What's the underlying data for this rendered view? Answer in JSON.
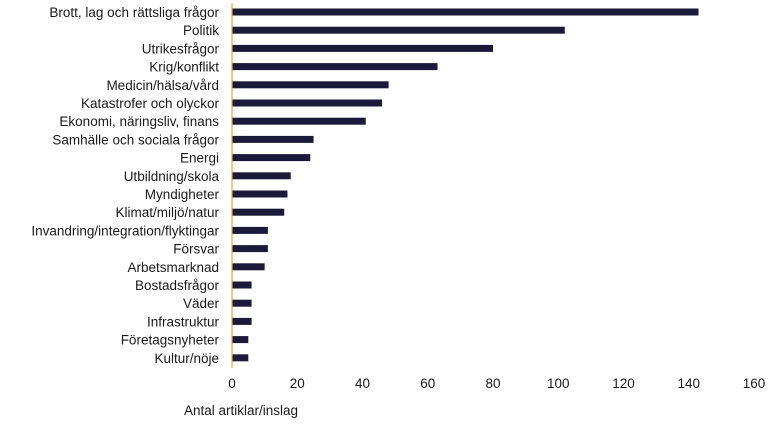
{
  "chart_data": {
    "type": "bar",
    "orientation": "horizontal",
    "categories": [
      "Brott, lag och rättsliga frågor",
      "Politik",
      "Utrikesfrågor",
      "Krig/konflikt",
      "Medicin/hälsa/vård",
      "Katastrofer och olyckor",
      "Ekonomi, näringsliv, finans",
      "Samhälle och sociala frågor",
      "Energi",
      "Utbildning/skola",
      "Myndigheter",
      "Klimat/miljö/natur",
      "Invandring/integration/flyktingar",
      "Försvar",
      "Arbetsmarknad",
      "Bostadsfrågor",
      "Väder",
      "Infrastruktur",
      "Företagsnyheter",
      "Kultur/nöje"
    ],
    "values": [
      143,
      102,
      80,
      63,
      48,
      46,
      41,
      25,
      24,
      18,
      17,
      16,
      11,
      11,
      10,
      6,
      6,
      6,
      5,
      5
    ],
    "xlabel": "Antal artiklar/inslag",
    "ylabel": "",
    "xlim": [
      0,
      160
    ],
    "xticks": [
      "0",
      "20",
      "40",
      "60",
      "80",
      "100",
      "120",
      "140",
      "160"
    ],
    "grid": false,
    "bar_color": "#1c1a3a",
    "axis_color": "#e0a93a"
  }
}
